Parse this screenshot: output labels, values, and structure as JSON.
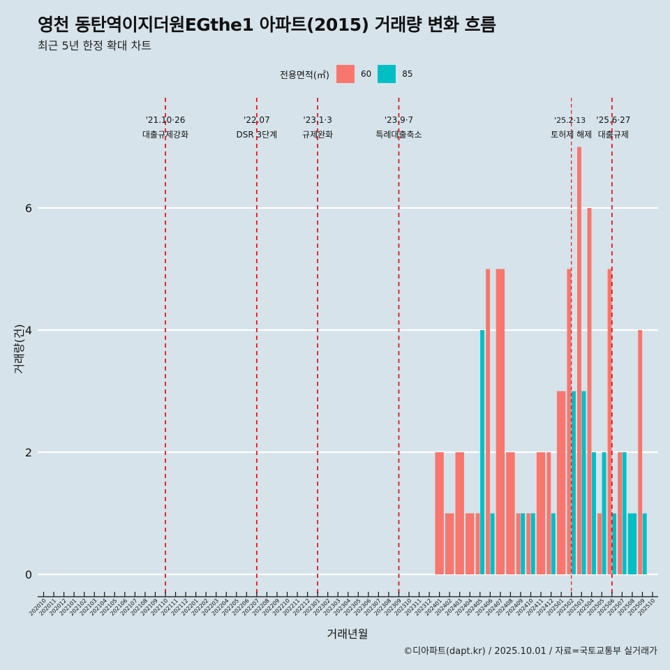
{
  "header": {
    "title": "영천 동탄역이지더원EGthe1 아파트(2015) 거래량 변화 흐름",
    "subtitle": "최근 5년 한정 확대 차트"
  },
  "legend": {
    "title": "전용면적(㎡)",
    "items": [
      {
        "label": "60",
        "color": "#F8766D"
      },
      {
        "label": "85",
        "color": "#00BFC4"
      }
    ]
  },
  "caption": "©디아파트(dapt.kr) / 2025.10.01 / 자료=국토교통부 실거래가",
  "chart_data": {
    "type": "bar",
    "title": "영천 동탄역이지더원EGthe1 아파트(2015) 거래량 변화 흐름",
    "subtitle": "최근 5년 한정 확대 차트",
    "xlabel": "거래년월",
    "ylabel": "거래량(건)",
    "ylim": [
      0,
      7
    ],
    "yticks": [
      0,
      2,
      4,
      6
    ],
    "grid": true,
    "legend_position": "top",
    "categories": [
      "202010",
      "202011",
      "202012",
      "202101",
      "202102",
      "202103",
      "202104",
      "202105",
      "202106",
      "202107",
      "202108",
      "202109",
      "202110",
      "202111",
      "202112",
      "202201",
      "202202",
      "202203",
      "202204",
      "202205",
      "202206",
      "202207",
      "202208",
      "202209",
      "202210",
      "202211",
      "202212",
      "202301",
      "202302",
      "202303",
      "202304",
      "202305",
      "202306",
      "202307",
      "202308",
      "202309",
      "202310",
      "202311",
      "202312",
      "202401",
      "202402",
      "202403",
      "202404",
      "202405",
      "202406",
      "202407",
      "202408",
      "202409",
      "202410",
      "202411",
      "202412",
      "202501",
      "202502",
      "202503",
      "202504",
      "202505",
      "202506",
      "202507",
      "202508",
      "202509",
      "202510"
    ],
    "series": [
      {
        "name": "60",
        "color": "#F8766D",
        "values": {
          "202401": 2,
          "202402": 1,
          "202403": 2,
          "202404": 1,
          "202405": 1,
          "202406": 5,
          "202407": 5,
          "202408": 2,
          "202409": 1,
          "202410": 1,
          "202411": 2,
          "202412": 2,
          "202501": 3,
          "202502": 5,
          "202503": 7,
          "202504": 6,
          "202505": 1,
          "202506": 5,
          "202507": 2,
          "202509": 4
        }
      },
      {
        "name": "85",
        "color": "#00BFC4",
        "values": {
          "202405": 4,
          "202406": 1,
          "202409": 1,
          "202410": 1,
          "202412": 1,
          "202502": 3,
          "202503": 3,
          "202504": 2,
          "202505": 2,
          "202506": 1,
          "202507": 2,
          "202508": 1,
          "202509": 1
        }
      }
    ],
    "annotations": [
      {
        "month": "202110",
        "date": "'21.10·26",
        "label": "대출규제강화"
      },
      {
        "month": "202207",
        "date": "'22.07",
        "label": "DSR 3단계"
      },
      {
        "month": "202301",
        "date": "'23.1·3",
        "label": "규제완화"
      },
      {
        "month": "202309",
        "date": "'23.9·7",
        "label": "특례대출축소"
      },
      {
        "month": "202502",
        "date": "'25.2·13",
        "label": "토허제 해제",
        "style": "thin"
      },
      {
        "month": "202506",
        "date": "'25.6·27",
        "label": "대출규제"
      }
    ]
  }
}
